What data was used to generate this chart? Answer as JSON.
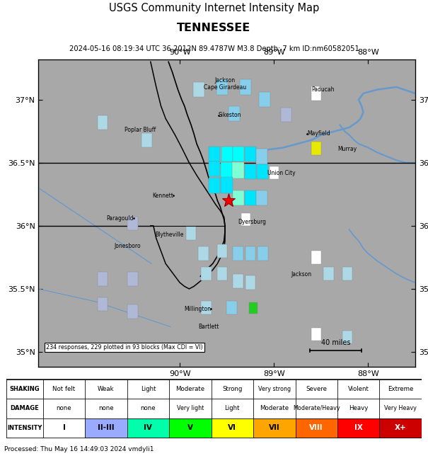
{
  "title_line1": "USGS Community Internet Intensity Map",
  "title_line2": "TENNESSEE",
  "title_line3": "2024-05-16 08:19:34 UTC 36.2012N 89.4787W M3.8 Depth: 7 km ID:nm60582051",
  "map_bg": "#a8a8a8",
  "xlim": [
    -91.5,
    -87.5
  ],
  "ylim": [
    34.88,
    37.32
  ],
  "epicenter": [
    -89.4787,
    36.2012
  ],
  "xticks": [
    -90,
    -89,
    -88
  ],
  "xtick_labels": [
    "90°W",
    "89°W",
    "88°W"
  ],
  "yticks": [
    35,
    35.5,
    36,
    36.5,
    37
  ],
  "ytick_labels": [
    "35°N",
    "35.5°N",
    "36°N",
    "36.5°N",
    "37°N"
  ],
  "cities": [
    {
      "name": "Jackson\nCape Girardeau",
      "lon": -89.52,
      "lat": 37.18,
      "ha": "center",
      "va": "top",
      "dot": false
    },
    {
      "name": "Sikeston",
      "lon": -89.59,
      "lat": 36.875,
      "ha": "left",
      "va": "center",
      "dot": true
    },
    {
      "name": "Poplar Bluff",
      "lon": -90.42,
      "lat": 36.76,
      "ha": "center",
      "va": "center",
      "dot": false
    },
    {
      "name": "Kennett",
      "lon": -90.07,
      "lat": 36.24,
      "ha": "right",
      "va": "center",
      "dot": true
    },
    {
      "name": "Paragould",
      "lon": -90.49,
      "lat": 36.06,
      "ha": "right",
      "va": "center",
      "dot": true
    },
    {
      "name": "Jonesboro",
      "lon": -90.7,
      "lat": 35.84,
      "ha": "left",
      "va": "center",
      "dot": false
    },
    {
      "name": "Blytheville",
      "lon": -89.96,
      "lat": 35.93,
      "ha": "right",
      "va": "center",
      "dot": false
    },
    {
      "name": "Dyersburg",
      "lon": -89.38,
      "lat": 36.03,
      "ha": "left",
      "va": "center",
      "dot": false
    },
    {
      "name": "Union City",
      "lon": -89.07,
      "lat": 36.42,
      "ha": "left",
      "va": "center",
      "dot": false
    },
    {
      "name": "Paducah",
      "lon": -88.6,
      "lat": 37.08,
      "ha": "left",
      "va": "center",
      "dot": false
    },
    {
      "name": "Mayfield",
      "lon": -88.65,
      "lat": 36.73,
      "ha": "left",
      "va": "center",
      "dot": true
    },
    {
      "name": "Murray",
      "lon": -88.32,
      "lat": 36.61,
      "ha": "left",
      "va": "center",
      "dot": false
    },
    {
      "name": "Jackson",
      "lon": -88.82,
      "lat": 35.615,
      "ha": "left",
      "va": "center",
      "dot": false
    },
    {
      "name": "Millington",
      "lon": -89.67,
      "lat": 35.34,
      "ha": "right",
      "va": "center",
      "dot": true
    },
    {
      "name": "Bartlett",
      "lon": -89.58,
      "lat": 35.2,
      "ha": "right",
      "va": "center",
      "dot": false
    }
  ],
  "intensity_squares": [
    {
      "lon": -89.8,
      "lat": 37.08,
      "color": "#add8e6",
      "size": 0.12
    },
    {
      "lon": -89.55,
      "lat": 37.1,
      "color": "#87ceeb",
      "size": 0.12
    },
    {
      "lon": -89.3,
      "lat": 37.1,
      "color": "#87ceeb",
      "size": 0.12
    },
    {
      "lon": -89.1,
      "lat": 37.0,
      "color": "#87ceeb",
      "size": 0.12
    },
    {
      "lon": -89.42,
      "lat": 36.89,
      "color": "#87ceeb",
      "size": 0.12
    },
    {
      "lon": -88.55,
      "lat": 37.05,
      "color": "#ffffff",
      "size": 0.11
    },
    {
      "lon": -88.87,
      "lat": 36.88,
      "color": "#b0b8d8",
      "size": 0.11
    },
    {
      "lon": -90.82,
      "lat": 36.82,
      "color": "#add8e6",
      "size": 0.11
    },
    {
      "lon": -90.35,
      "lat": 36.68,
      "color": "#add8e6",
      "size": 0.11
    },
    {
      "lon": -88.55,
      "lat": 36.615,
      "color": "#e8e800",
      "size": 0.11
    },
    {
      "lon": -89.63,
      "lat": 36.57,
      "color": "#00e5ff",
      "size": 0.12
    },
    {
      "lon": -89.5,
      "lat": 36.57,
      "color": "#00ffff",
      "size": 0.12
    },
    {
      "lon": -89.38,
      "lat": 36.57,
      "color": "#00ffff",
      "size": 0.12
    },
    {
      "lon": -89.25,
      "lat": 36.57,
      "color": "#00e5ff",
      "size": 0.12
    },
    {
      "lon": -89.13,
      "lat": 36.55,
      "color": "#87ceeb",
      "size": 0.12
    },
    {
      "lon": -89.63,
      "lat": 36.45,
      "color": "#00e5ff",
      "size": 0.12
    },
    {
      "lon": -89.5,
      "lat": 36.44,
      "color": "#00ffff",
      "size": 0.13
    },
    {
      "lon": -89.38,
      "lat": 36.44,
      "color": "#7fffd4",
      "size": 0.13
    },
    {
      "lon": -89.25,
      "lat": 36.43,
      "color": "#00e5ff",
      "size": 0.12
    },
    {
      "lon": -89.12,
      "lat": 36.43,
      "color": "#00e5ff",
      "size": 0.12
    },
    {
      "lon": -89.0,
      "lat": 36.42,
      "color": "#ffffff",
      "size": 0.1
    },
    {
      "lon": -89.63,
      "lat": 36.32,
      "color": "#00e5ff",
      "size": 0.12
    },
    {
      "lon": -89.5,
      "lat": 36.32,
      "color": "#00e5ff",
      "size": 0.13
    },
    {
      "lon": -89.38,
      "lat": 36.22,
      "color": "#7fffd4",
      "size": 0.12
    },
    {
      "lon": -89.25,
      "lat": 36.22,
      "color": "#00e5ff",
      "size": 0.12
    },
    {
      "lon": -89.13,
      "lat": 36.22,
      "color": "#87ceeb",
      "size": 0.12
    },
    {
      "lon": -89.3,
      "lat": 36.05,
      "color": "#ffffff",
      "size": 0.1
    },
    {
      "lon": -90.5,
      "lat": 36.02,
      "color": "#b0b8d8",
      "size": 0.11
    },
    {
      "lon": -89.88,
      "lat": 35.94,
      "color": "#add8e6",
      "size": 0.11
    },
    {
      "lon": -89.75,
      "lat": 35.78,
      "color": "#add8e6",
      "size": 0.11
    },
    {
      "lon": -89.55,
      "lat": 35.8,
      "color": "#add8e6",
      "size": 0.11
    },
    {
      "lon": -89.38,
      "lat": 35.78,
      "color": "#87ceeb",
      "size": 0.11
    },
    {
      "lon": -89.25,
      "lat": 35.78,
      "color": "#87ceeb",
      "size": 0.11
    },
    {
      "lon": -89.12,
      "lat": 35.78,
      "color": "#87ceeb",
      "size": 0.11
    },
    {
      "lon": -88.55,
      "lat": 35.75,
      "color": "#ffffff",
      "size": 0.11
    },
    {
      "lon": -90.82,
      "lat": 35.58,
      "color": "#b0b8d8",
      "size": 0.11
    },
    {
      "lon": -90.5,
      "lat": 35.58,
      "color": "#b0b8d8",
      "size": 0.11
    },
    {
      "lon": -89.72,
      "lat": 35.62,
      "color": "#add8e6",
      "size": 0.11
    },
    {
      "lon": -89.55,
      "lat": 35.62,
      "color": "#add8e6",
      "size": 0.11
    },
    {
      "lon": -89.38,
      "lat": 35.56,
      "color": "#add8e6",
      "size": 0.11
    },
    {
      "lon": -89.25,
      "lat": 35.55,
      "color": "#add8e6",
      "size": 0.11
    },
    {
      "lon": -88.42,
      "lat": 35.62,
      "color": "#add8e6",
      "size": 0.11
    },
    {
      "lon": -88.22,
      "lat": 35.62,
      "color": "#add8e6",
      "size": 0.11
    },
    {
      "lon": -90.82,
      "lat": 35.38,
      "color": "#b0b8d8",
      "size": 0.11
    },
    {
      "lon": -90.5,
      "lat": 35.32,
      "color": "#b0b8d8",
      "size": 0.11
    },
    {
      "lon": -89.72,
      "lat": 35.35,
      "color": "#add8e6",
      "size": 0.11
    },
    {
      "lon": -89.45,
      "lat": 35.35,
      "color": "#87ceeb",
      "size": 0.11
    },
    {
      "lon": -89.22,
      "lat": 35.35,
      "color": "#22cc22",
      "size": 0.09
    },
    {
      "lon": -88.55,
      "lat": 35.14,
      "color": "#ffffff",
      "size": 0.1
    },
    {
      "lon": -88.22,
      "lat": 35.12,
      "color": "#add8e6",
      "size": 0.1
    }
  ],
  "river_color": "#6699cc",
  "state_border_color": "#000000",
  "scale_bar": {
    "x1": -88.62,
    "x2": -88.07,
    "y": 35.01,
    "label": "40 miles"
  },
  "footnote": "234 responses, 229 plotted in 93 blocks (Max CDI = VI)",
  "processed_text": "Processed: Thu May 16 14:49:03 2024 vmdyli1",
  "intensity_table": {
    "shaking": [
      "Not felt",
      "Weak",
      "Light",
      "Moderate",
      "Strong",
      "Very strong",
      "Severe",
      "Violent",
      "Extreme"
    ],
    "damage": [
      "none",
      "none",
      "none",
      "Very light",
      "Light",
      "Moderate",
      "Moderate/Heavy",
      "Heavy",
      "Very Heavy"
    ],
    "intensity": [
      "I",
      "II-III",
      "IV",
      "V",
      "VI",
      "VII",
      "VIII",
      "IX",
      "X+"
    ],
    "colors": [
      "#ffffff",
      "#99aaff",
      "#00ffaa",
      "#00ff00",
      "#ffff00",
      "#ffa500",
      "#ff6600",
      "#ff0000",
      "#cc0000"
    ]
  },
  "missouri_bootheel": {
    "lon": [
      -90.31,
      -90.28,
      -90.25,
      -90.2,
      -90.15,
      -90.05,
      -89.98,
      -89.9,
      -89.82,
      -89.75,
      -89.68,
      -89.62,
      -89.57,
      -89.53,
      -89.52,
      -89.52,
      -89.52,
      -89.53,
      -89.56,
      -89.6,
      -89.65,
      -89.72,
      -89.8,
      -89.85,
      -89.9,
      -89.95,
      -90.0,
      -90.05,
      -90.1,
      -90.15,
      -90.2,
      -90.25,
      -90.28,
      -90.31
    ],
    "lat": [
      37.3,
      37.2,
      37.1,
      36.95,
      36.85,
      36.72,
      36.62,
      36.5,
      36.4,
      36.32,
      36.24,
      36.17,
      36.12,
      36.07,
      36.0,
      35.95,
      35.88,
      35.82,
      35.76,
      35.7,
      35.65,
      35.6,
      35.55,
      35.52,
      35.5,
      35.52,
      35.55,
      35.6,
      35.65,
      35.7,
      35.8,
      35.9,
      36.0,
      36.0
    ]
  }
}
